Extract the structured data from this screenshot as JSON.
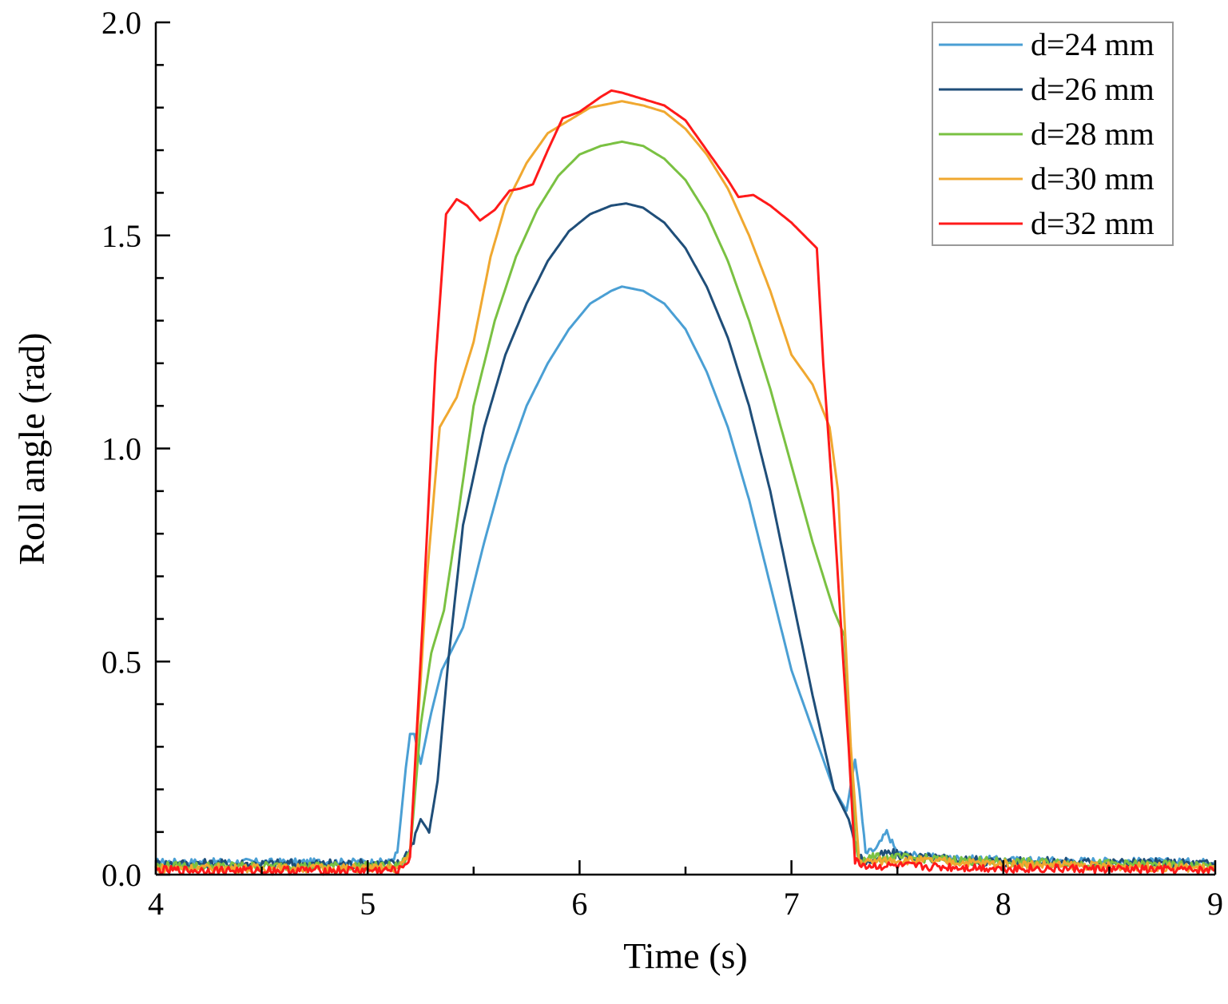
{
  "chart_data": {
    "type": "line",
    "title": "",
    "xlabel": "Time (s)",
    "ylabel": "Roll angle (rad)",
    "xlim": [
      4,
      9
    ],
    "ylim": [
      0,
      2.0
    ],
    "xticks": [
      4,
      5,
      6,
      7,
      8,
      9
    ],
    "xtick_labels": [
      "4",
      "5",
      "6",
      "7",
      "8",
      "9"
    ],
    "yticks": [
      0,
      0.5,
      1.0,
      1.5,
      2.0
    ],
    "ytick_labels": [
      "0.0",
      "0.5",
      "1.0",
      "1.5",
      "2.0"
    ],
    "grid": false,
    "legend_position": "top-right",
    "series": [
      {
        "name": "d=24 mm",
        "color": "#4a9fd4",
        "baseline": 0.03,
        "noise": 0.008,
        "points": [
          [
            4,
            0.03
          ],
          [
            5.1,
            0.03
          ],
          [
            5.14,
            0.05
          ],
          [
            5.18,
            0.25
          ],
          [
            5.2,
            0.33
          ],
          [
            5.22,
            0.33
          ],
          [
            5.25,
            0.26
          ],
          [
            5.3,
            0.38
          ],
          [
            5.35,
            0.48
          ],
          [
            5.45,
            0.58
          ],
          [
            5.55,
            0.78
          ],
          [
            5.65,
            0.96
          ],
          [
            5.75,
            1.1
          ],
          [
            5.85,
            1.2
          ],
          [
            5.95,
            1.28
          ],
          [
            6.05,
            1.34
          ],
          [
            6.15,
            1.37
          ],
          [
            6.2,
            1.38
          ],
          [
            6.3,
            1.37
          ],
          [
            6.4,
            1.34
          ],
          [
            6.5,
            1.28
          ],
          [
            6.6,
            1.18
          ],
          [
            6.7,
            1.05
          ],
          [
            6.8,
            0.88
          ],
          [
            6.9,
            0.68
          ],
          [
            7.0,
            0.48
          ],
          [
            7.1,
            0.34
          ],
          [
            7.2,
            0.2
          ],
          [
            7.26,
            0.15
          ],
          [
            7.3,
            0.27
          ],
          [
            7.32,
            0.2
          ],
          [
            7.35,
            0.05
          ],
          [
            7.4,
            0.06
          ],
          [
            7.45,
            0.1
          ],
          [
            7.5,
            0.05
          ],
          [
            7.7,
            0.04
          ],
          [
            8,
            0.035
          ],
          [
            9,
            0.03
          ]
        ]
      },
      {
        "name": "d=26 mm",
        "color": "#1f4e79",
        "baseline": 0.025,
        "noise": 0.012,
        "points": [
          [
            4,
            0.025
          ],
          [
            5.15,
            0.025
          ],
          [
            5.2,
            0.06
          ],
          [
            5.25,
            0.13
          ],
          [
            5.29,
            0.1
          ],
          [
            5.33,
            0.22
          ],
          [
            5.38,
            0.5
          ],
          [
            5.45,
            0.82
          ],
          [
            5.55,
            1.05
          ],
          [
            5.65,
            1.22
          ],
          [
            5.75,
            1.34
          ],
          [
            5.85,
            1.44
          ],
          [
            5.95,
            1.51
          ],
          [
            6.05,
            1.55
          ],
          [
            6.15,
            1.57
          ],
          [
            6.22,
            1.575
          ],
          [
            6.3,
            1.565
          ],
          [
            6.4,
            1.53
          ],
          [
            6.5,
            1.47
          ],
          [
            6.6,
            1.38
          ],
          [
            6.7,
            1.26
          ],
          [
            6.8,
            1.1
          ],
          [
            6.9,
            0.9
          ],
          [
            7.0,
            0.66
          ],
          [
            7.1,
            0.42
          ],
          [
            7.2,
            0.2
          ],
          [
            7.27,
            0.13
          ],
          [
            7.32,
            0.04
          ],
          [
            7.36,
            0.03
          ],
          [
            7.45,
            0.05
          ],
          [
            7.6,
            0.04
          ],
          [
            8,
            0.03
          ],
          [
            9,
            0.025
          ]
        ]
      },
      {
        "name": "d=28 mm",
        "color": "#7ac142",
        "baseline": 0.02,
        "noise": 0.01,
        "points": [
          [
            4,
            0.02
          ],
          [
            5.15,
            0.02
          ],
          [
            5.2,
            0.05
          ],
          [
            5.25,
            0.35
          ],
          [
            5.3,
            0.52
          ],
          [
            5.36,
            0.62
          ],
          [
            5.42,
            0.82
          ],
          [
            5.5,
            1.1
          ],
          [
            5.6,
            1.3
          ],
          [
            5.7,
            1.45
          ],
          [
            5.8,
            1.56
          ],
          [
            5.9,
            1.64
          ],
          [
            6.0,
            1.69
          ],
          [
            6.1,
            1.71
          ],
          [
            6.2,
            1.72
          ],
          [
            6.3,
            1.71
          ],
          [
            6.4,
            1.68
          ],
          [
            6.5,
            1.63
          ],
          [
            6.6,
            1.55
          ],
          [
            6.7,
            1.44
          ],
          [
            6.8,
            1.3
          ],
          [
            6.9,
            1.14
          ],
          [
            7.0,
            0.96
          ],
          [
            7.1,
            0.78
          ],
          [
            7.2,
            0.62
          ],
          [
            7.25,
            0.56
          ],
          [
            7.3,
            0.08
          ],
          [
            7.32,
            0.03
          ],
          [
            7.36,
            0.04
          ],
          [
            7.5,
            0.04
          ],
          [
            8,
            0.03
          ],
          [
            9,
            0.02
          ]
        ]
      },
      {
        "name": "d=30 mm",
        "color": "#f0a830",
        "baseline": 0.015,
        "noise": 0.01,
        "points": [
          [
            4,
            0.015
          ],
          [
            5.15,
            0.015
          ],
          [
            5.2,
            0.05
          ],
          [
            5.28,
            0.7
          ],
          [
            5.34,
            1.05
          ],
          [
            5.42,
            1.12
          ],
          [
            5.5,
            1.25
          ],
          [
            5.58,
            1.45
          ],
          [
            5.65,
            1.57
          ],
          [
            5.75,
            1.67
          ],
          [
            5.85,
            1.74
          ],
          [
            5.95,
            1.77
          ],
          [
            6.05,
            1.8
          ],
          [
            6.15,
            1.81
          ],
          [
            6.2,
            1.815
          ],
          [
            6.3,
            1.805
          ],
          [
            6.4,
            1.79
          ],
          [
            6.5,
            1.75
          ],
          [
            6.6,
            1.69
          ],
          [
            6.7,
            1.61
          ],
          [
            6.8,
            1.5
          ],
          [
            6.9,
            1.37
          ],
          [
            7.0,
            1.22
          ],
          [
            7.1,
            1.15
          ],
          [
            7.18,
            1.05
          ],
          [
            7.22,
            0.9
          ],
          [
            7.28,
            0.3
          ],
          [
            7.32,
            0.03
          ],
          [
            7.36,
            0.03
          ],
          [
            7.5,
            0.035
          ],
          [
            8,
            0.025
          ],
          [
            9,
            0.015
          ]
        ]
      },
      {
        "name": "d=32 mm",
        "color": "#ff1a1a",
        "baseline": 0.01,
        "noise": 0.01,
        "points": [
          [
            4,
            0.01
          ],
          [
            5.15,
            0.01
          ],
          [
            5.2,
            0.04
          ],
          [
            5.26,
            0.6
          ],
          [
            5.32,
            1.2
          ],
          [
            5.37,
            1.55
          ],
          [
            5.42,
            1.585
          ],
          [
            5.47,
            1.57
          ],
          [
            5.53,
            1.535
          ],
          [
            5.6,
            1.56
          ],
          [
            5.67,
            1.605
          ],
          [
            5.72,
            1.61
          ],
          [
            5.78,
            1.62
          ],
          [
            5.85,
            1.7
          ],
          [
            5.92,
            1.775
          ],
          [
            6.0,
            1.79
          ],
          [
            6.1,
            1.825
          ],
          [
            6.15,
            1.84
          ],
          [
            6.2,
            1.835
          ],
          [
            6.3,
            1.82
          ],
          [
            6.4,
            1.805
          ],
          [
            6.5,
            1.77
          ],
          [
            6.6,
            1.7
          ],
          [
            6.7,
            1.63
          ],
          [
            6.75,
            1.59
          ],
          [
            6.82,
            1.595
          ],
          [
            6.9,
            1.57
          ],
          [
            7.0,
            1.53
          ],
          [
            7.08,
            1.49
          ],
          [
            7.12,
            1.47
          ],
          [
            7.15,
            1.2
          ],
          [
            7.2,
            0.85
          ],
          [
            7.27,
            0.3
          ],
          [
            7.3,
            0.03
          ],
          [
            7.36,
            0.02
          ],
          [
            7.5,
            0.02
          ],
          [
            8,
            0.015
          ],
          [
            9,
            0.01
          ]
        ]
      }
    ]
  }
}
